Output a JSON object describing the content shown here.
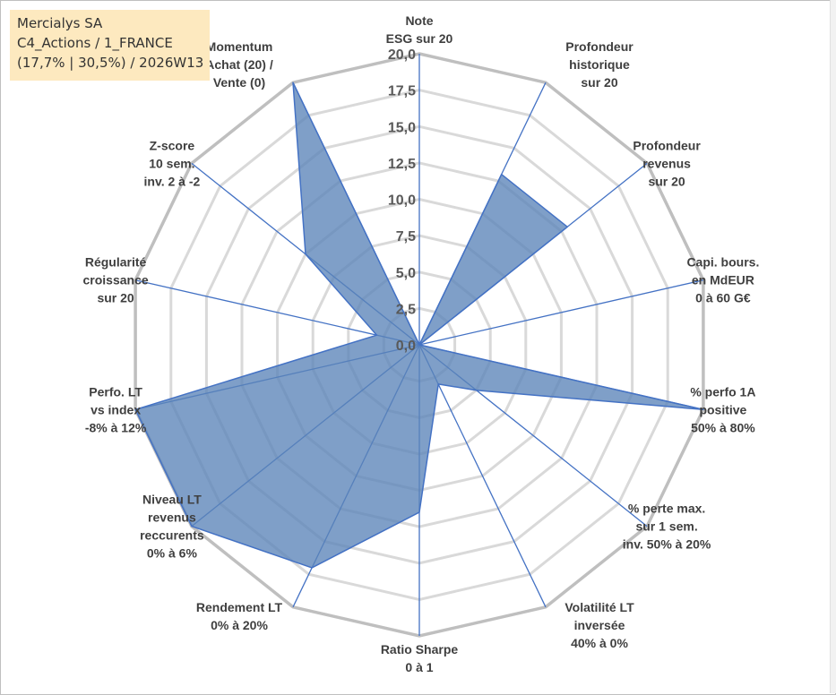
{
  "info": {
    "company": "Mercialys SA",
    "portfolio": "C4_Actions / 1_FRANCE",
    "stats": "(17,7% | 30,5%) / 2026W13"
  },
  "colors": {
    "fill": "#5b84b8",
    "stroke": "#4472c4",
    "ring": "#bfbfbf",
    "inner_ring": "#d9d9d9",
    "spoke": "#4472c4",
    "background": "#ffffff",
    "info_bg": "#fde9bf"
  },
  "chart_data": {
    "type": "radar",
    "rmin": 0,
    "rmax": 20,
    "tick_step": 2.5,
    "tick_labels": [
      "0,0",
      "2,5",
      "5,0",
      "7,5",
      "10,0",
      "12,5",
      "15,0",
      "17,5",
      "20,0"
    ],
    "axes": [
      {
        "label": [
          "Note",
          "ESG sur 20"
        ],
        "value": 0
      },
      {
        "label": [
          "Profondeur",
          "historique",
          "sur 20"
        ],
        "value": 13
      },
      {
        "label": [
          "Profondeur",
          "revenus",
          "sur 20"
        ],
        "value": 13
      },
      {
        "label": [
          "Capi. bours.",
          "en MdEUR",
          "0 à 60 G€"
        ],
        "value": 0
      },
      {
        "label": [
          "% perfo 1A",
          "positive",
          "50% à 80%"
        ],
        "value": 20
      },
      {
        "label": [
          "% perte max.",
          "sur 1 sem.",
          "inv. 50% à 20%"
        ],
        "value": 5
      },
      {
        "label": [
          "Volatilité LT",
          "inversée",
          "40% à 0%"
        ],
        "value": 3
      },
      {
        "label": [
          "Ratio Sharpe",
          "0 à 1"
        ],
        "value": 11.5
      },
      {
        "label": [
          "Rendement LT",
          "0% à 20%"
        ],
        "value": 17
      },
      {
        "label": [
          "Niveau LT",
          "revenus",
          "reccurents",
          "0% à 6%"
        ],
        "value": 20
      },
      {
        "label": [
          "Perfo. LT",
          "vs index",
          "-8% à 12%"
        ],
        "value": 20
      },
      {
        "label": [
          "Régularité",
          "croissance",
          "sur 20"
        ],
        "value": 3
      },
      {
        "label": [
          "Z-score",
          "10 sem.",
          "inv. 2 à -2"
        ],
        "value": 10
      },
      {
        "label": [
          "Momentum",
          "Achat (20) /",
          "Vente (0)"
        ],
        "value": 20
      }
    ]
  }
}
